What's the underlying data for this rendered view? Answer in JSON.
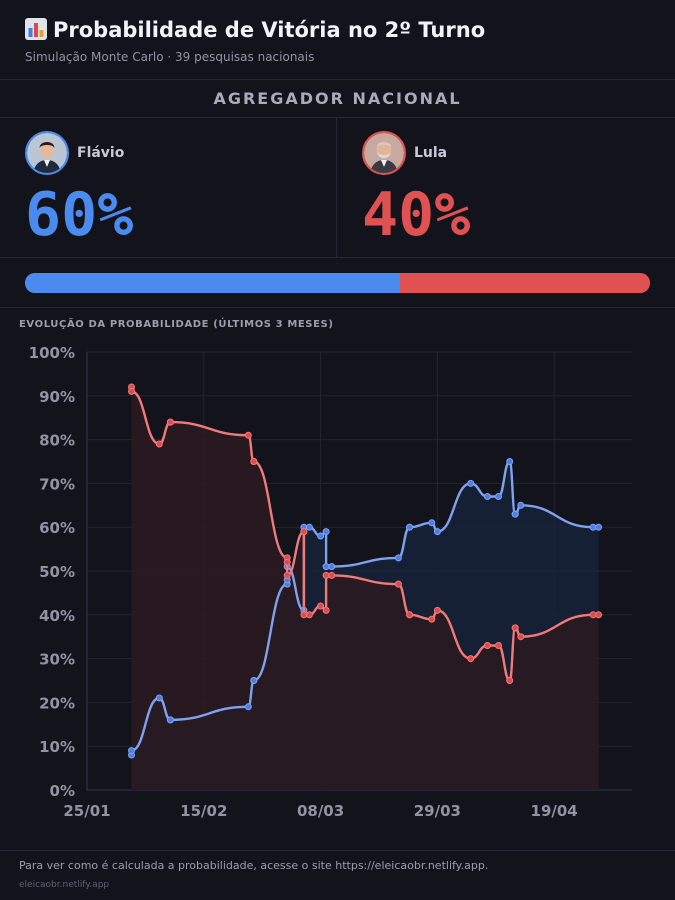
{
  "header": {
    "icon": "bar-chart-icon",
    "title": "Probabilidade de Vitória no 2º Turno",
    "subtitle": "Simulação Monte Carlo · 39 pesquisas nacionais"
  },
  "aggregator_label": "AGREGADOR NACIONAL",
  "candidates": [
    {
      "name": "Flávio",
      "pct_label": "60%",
      "share": 0.6,
      "color": "#4b8bf0"
    },
    {
      "name": "Lula",
      "pct_label": "40%",
      "share": 0.4,
      "color": "#e05252"
    }
  ],
  "chart_label": "EVOLUÇÃO DA PROBABILIDADE (ÚLTIMOS 3 MESES)",
  "chart_data": {
    "type": "line",
    "title": "",
    "xlabel": "",
    "ylabel": "",
    "x_ticks": [
      "25/01",
      "15/02",
      "08/03",
      "29/03",
      "19/04"
    ],
    "xlim": [
      "2025-01-25",
      "2025-05-03"
    ],
    "y_ticks": [
      "0%",
      "10%",
      "20%",
      "30%",
      "40%",
      "50%",
      "60%",
      "70%",
      "80%",
      "90%",
      "100%"
    ],
    "ylim": [
      0,
      100
    ],
    "grid": true,
    "x": [
      "2025-02-02",
      "2025-02-02",
      "2025-02-07",
      "2025-02-09",
      "2025-02-09",
      "2025-02-23",
      "2025-02-24",
      "2025-02-24",
      "2025-03-02",
      "2025-03-02",
      "2025-03-02",
      "2025-03-05",
      "2025-03-05",
      "2025-03-06",
      "2025-03-08",
      "2025-03-09",
      "2025-03-09",
      "2025-03-10",
      "2025-03-22",
      "2025-03-24",
      "2025-03-24",
      "2025-03-28",
      "2025-03-29",
      "2025-04-04",
      "2025-04-07",
      "2025-04-09",
      "2025-04-11",
      "2025-04-12",
      "2025-04-12",
      "2025-04-13",
      "2025-04-26",
      "2025-04-27"
    ],
    "series": [
      {
        "name": "Flávio",
        "color": "#7ea2ee",
        "values": [
          8,
          9,
          21,
          16,
          16,
          19,
          25,
          25,
          47,
          48,
          51,
          41,
          60,
          60,
          58,
          59,
          51,
          51,
          53,
          60,
          60,
          61,
          59,
          70,
          67,
          67,
          75,
          63,
          63,
          65,
          60,
          60
        ]
      },
      {
        "name": "Lula",
        "color": "#f07a7a",
        "values": [
          92,
          91,
          79,
          84,
          84,
          81,
          75,
          75,
          53,
          52,
          49,
          59,
          40,
          40,
          42,
          41,
          49,
          49,
          47,
          40,
          40,
          39,
          41,
          30,
          33,
          33,
          25,
          37,
          37,
          35,
          40,
          40
        ]
      }
    ]
  },
  "footer": {
    "note": "Para ver como é calculada a probabilidade, acesse o site https://eleicaobr.netlify.app.",
    "site": "eleicaobr.netlify.app"
  }
}
